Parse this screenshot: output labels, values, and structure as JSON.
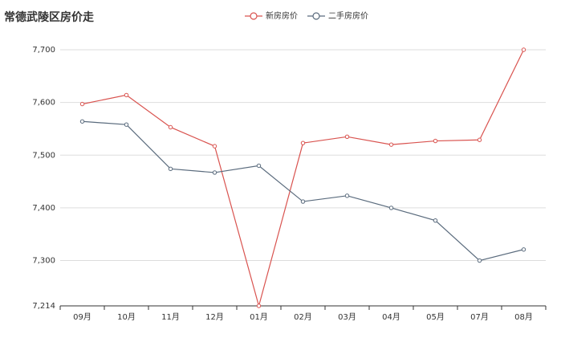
{
  "chart_data": {
    "type": "line",
    "title": "常德武陵区房价走",
    "categories": [
      "09月",
      "10月",
      "11月",
      "12月",
      "01月",
      "02月",
      "03月",
      "04月",
      "05月",
      "07月",
      "08月"
    ],
    "series": [
      {
        "name": "新房房价",
        "color": "#d9534f",
        "values": [
          7597,
          7614,
          7553,
          7517,
          7214,
          7523,
          7535,
          7520,
          7527,
          7529,
          7700
        ]
      },
      {
        "name": "二手房房价",
        "color": "#5a6b7d",
        "values": [
          7564,
          7558,
          7474,
          7467,
          7480,
          7412,
          7423,
          7400,
          7376,
          7300,
          7321
        ]
      }
    ],
    "ylim": [
      7214,
      7700
    ],
    "yticks": [
      {
        "value": 7214,
        "label": "7,214"
      },
      {
        "value": 7300,
        "label": "7,300"
      },
      {
        "value": 7400,
        "label": "7,400"
      },
      {
        "value": 7500,
        "label": "7,500"
      },
      {
        "value": 7600,
        "label": "7,600"
      },
      {
        "value": 7700,
        "label": "7,700"
      }
    ],
    "grid": true
  }
}
